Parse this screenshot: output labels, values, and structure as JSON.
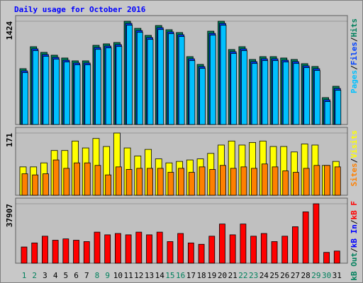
{
  "chart_data": [
    {
      "type": "bar",
      "title": "Daily usage for October 2016",
      "title_color": "#0000ff",
      "ylim": [
        0,
        1424
      ],
      "yticks": [
        1424
      ],
      "legend_separator": "/",
      "series": [
        {
          "name": "Hits",
          "color": "#00805c",
          "values": [
            770,
            1073,
            995,
            956,
            917,
            878,
            878,
            1092,
            1112,
            1131,
            1424,
            1326,
            1229,
            1365,
            1307,
            1268,
            936,
            829,
            1287,
            1424,
            1034,
            1073,
            897,
            936,
            936,
            917,
            897,
            839,
            800,
            371,
            527
          ]
        },
        {
          "name": "Files",
          "color": "#0040ff",
          "values": [
            740,
            1043,
            965,
            926,
            887,
            848,
            848,
            1062,
            1082,
            1101,
            1394,
            1296,
            1199,
            1335,
            1277,
            1238,
            906,
            799,
            1257,
            1394,
            1004,
            1043,
            867,
            906,
            906,
            887,
            867,
            809,
            770,
            341,
            497
          ]
        },
        {
          "name": "Pages",
          "color": "#00c0ff",
          "values": [
            715,
            1018,
            940,
            901,
            862,
            823,
            823,
            1037,
            1057,
            1076,
            1369,
            1271,
            1174,
            1310,
            1252,
            1213,
            881,
            774,
            1232,
            1369,
            979,
            1018,
            842,
            881,
            881,
            862,
            842,
            784,
            745,
            316,
            472
          ]
        }
      ]
    },
    {
      "type": "bar",
      "ylim": [
        0,
        171
      ],
      "yticks": [
        171
      ],
      "legend_separator": "/",
      "series": [
        {
          "name": "Visits",
          "color": "#ffff00",
          "values": [
            78,
            78,
            89,
            123,
            123,
            149,
            130,
            156,
            134,
            171,
            130,
            108,
            126,
            100,
            89,
            93,
            97,
            100,
            115,
            138,
            149,
            138,
            145,
            149,
            134,
            134,
            119,
            141,
            138,
            82,
            93
          ]
        },
        {
          "name": "Sites",
          "color": "#ff8000",
          "values": [
            59,
            56,
            59,
            97,
            74,
            89,
            89,
            82,
            56,
            78,
            71,
            74,
            74,
            74,
            63,
            74,
            63,
            78,
            71,
            82,
            74,
            78,
            74,
            86,
            78,
            67,
            63,
            74,
            82,
            82,
            78
          ]
        }
      ]
    },
    {
      "type": "bar",
      "ylim": [
        0,
        37907
      ],
      "yticks": [
        37907
      ],
      "legend_separator": "/",
      "series": [
        {
          "name": "kB F",
          "color": "#ff0000",
          "values": [
            10339,
            12924,
            17232,
            14647,
            15509,
            14647,
            13786,
            19817,
            18094,
            18955,
            18094,
            19817,
            18094,
            19817,
            13786,
            18955,
            12924,
            12062,
            17232,
            24986,
            18094,
            24986,
            17232,
            18955,
            13786,
            17232,
            23263,
            32741,
            37907,
            6893,
            7754
          ]
        }
      ],
      "legend_more": [
        {
          "name": "kB In",
          "color": "#0000ff"
        },
        {
          "name": "kB Out",
          "color": "#00805c"
        }
      ],
      "categories": [
        "1",
        "2",
        "3",
        "4",
        "5",
        "6",
        "7",
        "8",
        "9",
        "10",
        "11",
        "12",
        "13",
        "14",
        "15",
        "16",
        "17",
        "18",
        "19",
        "20",
        "21",
        "22",
        "23",
        "24",
        "25",
        "26",
        "27",
        "28",
        "29",
        "30",
        "31"
      ],
      "category_colors": [
        "#00805c",
        "#00805c",
        "#000000",
        "#000000",
        "#000000",
        "#000000",
        "#000000",
        "#00805c",
        "#00805c",
        "#000000",
        "#000000",
        "#000000",
        "#000000",
        "#000000",
        "#00805c",
        "#00805c",
        "#000000",
        "#000000",
        "#000000",
        "#000000",
        "#000000",
        "#00805c",
        "#00805c",
        "#000000",
        "#000000",
        "#000000",
        "#000000",
        "#000000",
        "#00805c",
        "#00805c",
        "#000000"
      ]
    }
  ]
}
